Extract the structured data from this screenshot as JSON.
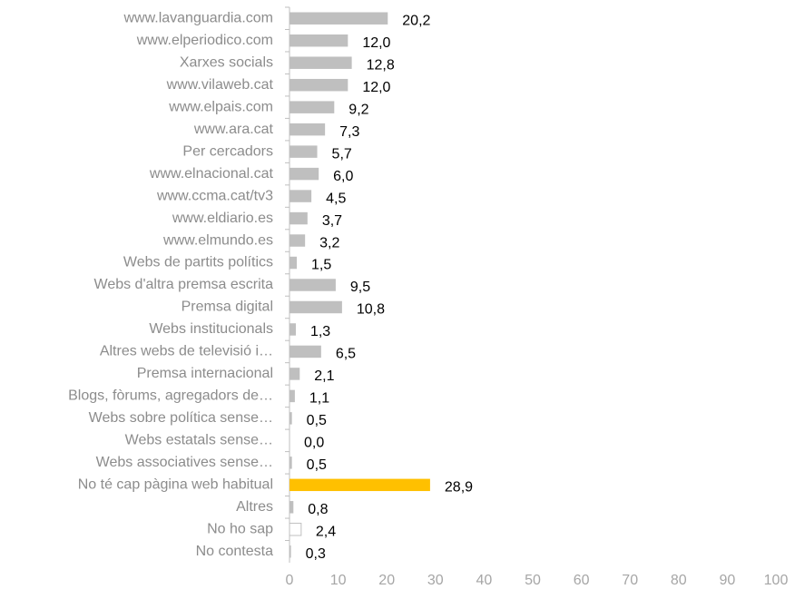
{
  "chart_data": {
    "type": "bar",
    "orientation": "horizontal",
    "categories": [
      "www.lavanguardia.com",
      "www.elperiodico.com",
      "Xarxes socials",
      "www.vilaweb.cat",
      "www.elpais.com",
      "www.ara.cat",
      "Per cercadors",
      "www.elnacional.cat",
      "www.ccma.cat/tv3",
      "www.eldiario.es",
      "www.elmundo.es",
      "Webs de partits polítics",
      "Webs d'altra premsa escrita",
      "Premsa digital",
      "Webs institucionals",
      "Altres webs de televisió i…",
      "Premsa internacional",
      "Blogs, fòrums, agregadors de…",
      "Webs sobre política sense…",
      "Webs estatals sense…",
      "Webs associatives sense…",
      "No té cap pàgina web habitual",
      "Altres",
      "No ho sap",
      "No contesta"
    ],
    "values": [
      20.2,
      12.0,
      12.8,
      12.0,
      9.2,
      7.3,
      5.7,
      6.0,
      4.5,
      3.7,
      3.2,
      1.5,
      9.5,
      10.8,
      1.3,
      6.5,
      2.1,
      1.1,
      0.5,
      0.0,
      0.5,
      28.9,
      0.8,
      2.4,
      0.3
    ],
    "value_labels": [
      "20,2",
      "12,0",
      "12,8",
      "12,0",
      "9,2",
      "7,3",
      "5,7",
      "6,0",
      "4,5",
      "3,7",
      "3,2",
      "1,5",
      "9,5",
      "10,8",
      "1,3",
      "6,5",
      "2,1",
      "1,1",
      "0,5",
      "0,0",
      "0,5",
      "28,9",
      "0,8",
      "2,4",
      "0,3"
    ],
    "colors": [
      "#bfbfbf",
      "#bfbfbf",
      "#bfbfbf",
      "#bfbfbf",
      "#bfbfbf",
      "#bfbfbf",
      "#bfbfbf",
      "#bfbfbf",
      "#bfbfbf",
      "#bfbfbf",
      "#bfbfbf",
      "#bfbfbf",
      "#bfbfbf",
      "#bfbfbf",
      "#bfbfbf",
      "#bfbfbf",
      "#bfbfbf",
      "#bfbfbf",
      "#bfbfbf",
      "#bfbfbf",
      "#bfbfbf",
      "#ffc000",
      "#bfbfbf",
      "#ffffff",
      "#bfbfbf"
    ],
    "xlim": [
      0,
      100
    ],
    "xticks": [
      0,
      10,
      20,
      30,
      40,
      50,
      60,
      70,
      80,
      90,
      100
    ],
    "grid": false
  }
}
